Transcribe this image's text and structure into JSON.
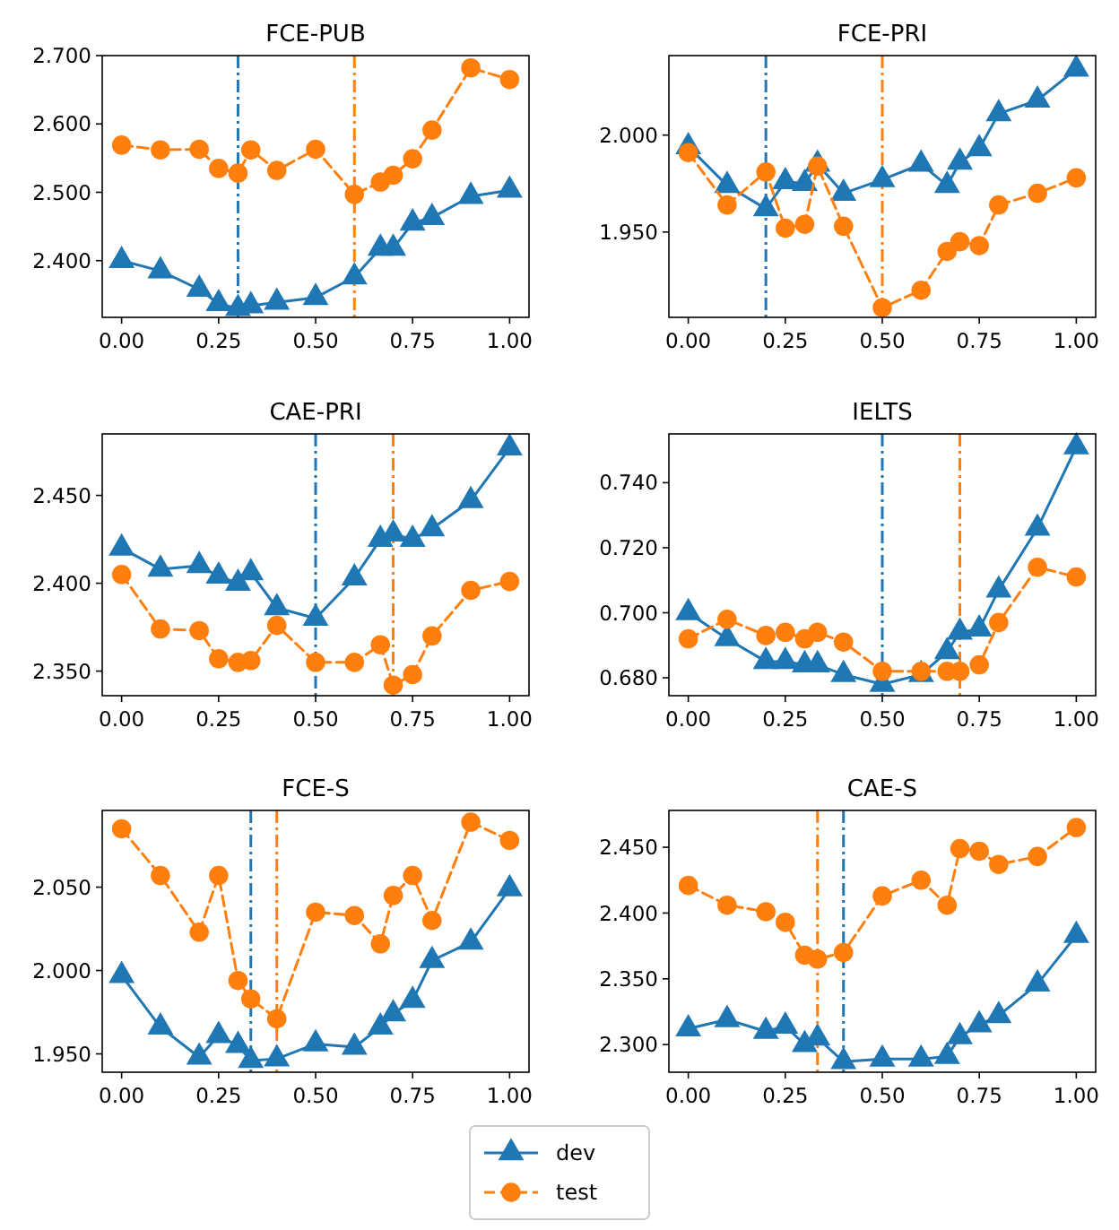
{
  "chart_data": [
    {
      "type": "line",
      "title": "FCE-PUB",
      "legend": "bottom",
      "x": [
        0,
        0.1,
        0.2,
        0.25,
        0.3,
        0.333,
        0.4,
        0.5,
        0.6,
        0.667,
        0.7,
        0.75,
        0.8,
        0.9,
        1.0
      ],
      "xlim": [
        -0.05,
        1.05
      ],
      "xticks": [
        {
          "value": 0,
          "label": "0.00"
        },
        {
          "value": 0.25,
          "label": "0.25"
        },
        {
          "value": 0.5,
          "label": "0.50"
        },
        {
          "value": 0.75,
          "label": "0.75"
        },
        {
          "value": 1,
          "label": "1.00"
        }
      ],
      "ylim": [
        2.317,
        2.7
      ],
      "yticks": [
        {
          "value": 2.4,
          "label": "2.400"
        },
        {
          "value": 2.5,
          "label": "2.500"
        },
        {
          "value": 2.6,
          "label": "2.600"
        },
        {
          "value": 2.7,
          "label": "2.700"
        }
      ],
      "series": [
        {
          "name": "dev",
          "color": "#1f77b4",
          "marker": "triangle",
          "line_style": "solid",
          "values": [
            2.4,
            2.385,
            2.358,
            2.337,
            2.33,
            2.334,
            2.339,
            2.346,
            2.376,
            2.418,
            2.418,
            2.455,
            2.463,
            2.494,
            2.503
          ]
        },
        {
          "name": "test",
          "color": "#ff7f0e",
          "marker": "circle",
          "line_style": "dashed",
          "values": [
            2.569,
            2.562,
            2.563,
            2.535,
            2.528,
            2.562,
            2.532,
            2.563,
            2.497,
            2.515,
            2.525,
            2.549,
            2.591,
            2.682,
            2.665
          ]
        }
      ],
      "ref_lines": [
        {
          "axis": "x",
          "value": 0.3,
          "color": "#1f77b4",
          "line_style": "dashdot"
        },
        {
          "axis": "x",
          "value": 0.6,
          "color": "#ff7f0e",
          "line_style": "dashdot"
        }
      ]
    },
    {
      "type": "line",
      "title": "FCE-PRI",
      "x": [
        0,
        0.1,
        0.2,
        0.25,
        0.3,
        0.333,
        0.4,
        0.5,
        0.6,
        0.667,
        0.7,
        0.75,
        0.8,
        0.9,
        1.0
      ],
      "xlim": [
        -0.05,
        1.05
      ],
      "xticks": [
        {
          "value": 0,
          "label": "0.00"
        },
        {
          "value": 0.25,
          "label": "0.25"
        },
        {
          "value": 0.5,
          "label": "0.50"
        },
        {
          "value": 0.75,
          "label": "0.75"
        },
        {
          "value": 1,
          "label": "1.00"
        }
      ],
      "ylim": [
        1.906,
        2.041
      ],
      "yticks": [
        {
          "value": 1.95,
          "label": "1.950"
        },
        {
          "value": 2.0,
          "label": "2.000"
        }
      ],
      "series": [
        {
          "color": "#1f77b4",
          "marker": "triangle",
          "line_style": "solid",
          "values": [
            1.994,
            1.974,
            1.962,
            1.976,
            1.975,
            1.985,
            1.97,
            1.977,
            1.985,
            1.974,
            1.986,
            1.993,
            2.011,
            2.018,
            2.034
          ]
        },
        {
          "color": "#ff7f0e",
          "marker": "circle",
          "line_style": "dashed",
          "values": [
            1.991,
            1.964,
            1.981,
            1.952,
            1.954,
            1.984,
            1.953,
            1.911,
            1.92,
            1.94,
            1.945,
            1.943,
            1.964,
            1.97,
            1.978
          ]
        }
      ],
      "ref_lines": [
        {
          "axis": "x",
          "value": 0.2,
          "color": "#1f77b4",
          "line_style": "dashdot"
        },
        {
          "axis": "x",
          "value": 0.5,
          "color": "#ff7f0e",
          "line_style": "dashdot"
        }
      ]
    },
    {
      "type": "line",
      "title": "CAE-PRI",
      "x": [
        0,
        0.1,
        0.2,
        0.25,
        0.3,
        0.333,
        0.4,
        0.5,
        0.6,
        0.667,
        0.7,
        0.75,
        0.8,
        0.9,
        1.0
      ],
      "xlim": [
        -0.05,
        1.05
      ],
      "xticks": [
        {
          "value": 0,
          "label": "0.00"
        },
        {
          "value": 0.25,
          "label": "0.25"
        },
        {
          "value": 0.5,
          "label": "0.50"
        },
        {
          "value": 0.75,
          "label": "0.75"
        },
        {
          "value": 1,
          "label": "1.00"
        }
      ],
      "ylim": [
        2.336,
        2.485
      ],
      "yticks": [
        {
          "value": 2.35,
          "label": "2.350"
        },
        {
          "value": 2.4,
          "label": "2.400"
        },
        {
          "value": 2.45,
          "label": "2.450"
        }
      ],
      "series": [
        {
          "color": "#1f77b4",
          "marker": "triangle",
          "line_style": "solid",
          "values": [
            2.42,
            2.408,
            2.41,
            2.404,
            2.4,
            2.406,
            2.386,
            2.38,
            2.403,
            2.425,
            2.428,
            2.425,
            2.431,
            2.447,
            2.477
          ]
        },
        {
          "color": "#ff7f0e",
          "marker": "circle",
          "line_style": "dashed",
          "values": [
            2.405,
            2.374,
            2.373,
            2.357,
            2.355,
            2.356,
            2.376,
            2.355,
            2.355,
            2.365,
            2.342,
            2.348,
            2.37,
            2.396,
            2.401
          ]
        }
      ],
      "ref_lines": [
        {
          "axis": "x",
          "value": 0.5,
          "color": "#1f77b4",
          "line_style": "dashdot"
        },
        {
          "axis": "x",
          "value": 0.7,
          "color": "#ff7f0e",
          "line_style": "dashdot"
        }
      ]
    },
    {
      "type": "line",
      "title": "IELTS",
      "x": [
        0,
        0.1,
        0.2,
        0.25,
        0.3,
        0.333,
        0.4,
        0.5,
        0.6,
        0.667,
        0.7,
        0.75,
        0.8,
        0.9,
        1.0
      ],
      "xlim": [
        -0.05,
        1.05
      ],
      "xticks": [
        {
          "value": 0,
          "label": "0.00"
        },
        {
          "value": 0.25,
          "label": "0.25"
        },
        {
          "value": 0.5,
          "label": "0.50"
        },
        {
          "value": 0.75,
          "label": "0.75"
        },
        {
          "value": 1,
          "label": "1.00"
        }
      ],
      "ylim": [
        0.6745,
        0.755
      ],
      "yticks": [
        {
          "value": 0.68,
          "label": "0.680"
        },
        {
          "value": 0.7,
          "label": "0.700"
        },
        {
          "value": 0.72,
          "label": "0.720"
        },
        {
          "value": 0.74,
          "label": "0.740"
        }
      ],
      "series": [
        {
          "color": "#1f77b4",
          "marker": "triangle",
          "line_style": "solid",
          "values": [
            0.7,
            0.692,
            0.685,
            0.685,
            0.684,
            0.684,
            0.681,
            0.678,
            0.681,
            0.688,
            0.694,
            0.695,
            0.707,
            0.726,
            0.751
          ]
        },
        {
          "color": "#ff7f0e",
          "marker": "circle",
          "line_style": "dashed",
          "values": [
            0.692,
            0.698,
            0.693,
            0.694,
            0.692,
            0.694,
            0.691,
            0.682,
            0.682,
            0.682,
            0.682,
            0.684,
            0.697,
            0.714,
            0.711
          ]
        }
      ],
      "ref_lines": [
        {
          "axis": "x",
          "value": 0.5,
          "color": "#1f77b4",
          "line_style": "dashdot"
        },
        {
          "axis": "x",
          "value": 0.7,
          "color": "#ff7f0e",
          "line_style": "dashdot"
        }
      ]
    },
    {
      "type": "line",
      "title": "FCE-S",
      "x": [
        0,
        0.1,
        0.2,
        0.25,
        0.3,
        0.333,
        0.4,
        0.5,
        0.6,
        0.667,
        0.7,
        0.75,
        0.8,
        0.9,
        1.0
      ],
      "xlim": [
        -0.05,
        1.05
      ],
      "xticks": [
        {
          "value": 0,
          "label": "0.00"
        },
        {
          "value": 0.25,
          "label": "0.25"
        },
        {
          "value": 0.5,
          "label": "0.50"
        },
        {
          "value": 0.75,
          "label": "0.75"
        },
        {
          "value": 1,
          "label": "1.00"
        }
      ],
      "ylim": [
        1.939,
        2.096
      ],
      "yticks": [
        {
          "value": 1.95,
          "label": "1.950"
        },
        {
          "value": 2.0,
          "label": "2.000"
        },
        {
          "value": 2.05,
          "label": "2.050"
        }
      ],
      "series": [
        {
          "color": "#1f77b4",
          "marker": "triangle",
          "line_style": "solid",
          "values": [
            1.997,
            1.966,
            1.948,
            1.961,
            1.955,
            1.946,
            1.947,
            1.956,
            1.954,
            1.966,
            1.974,
            1.982,
            2.006,
            2.017,
            2.049
          ]
        },
        {
          "color": "#ff7f0e",
          "marker": "circle",
          "line_style": "dashed",
          "values": [
            2.085,
            2.057,
            2.023,
            2.057,
            1.994,
            1.983,
            1.971,
            2.035,
            2.033,
            2.016,
            2.045,
            2.057,
            2.03,
            2.089,
            2.078
          ]
        }
      ],
      "ref_lines": [
        {
          "axis": "x",
          "value": 0.333,
          "color": "#1f77b4",
          "line_style": "dashdot"
        },
        {
          "axis": "x",
          "value": 0.4,
          "color": "#ff7f0e",
          "line_style": "dashdot"
        }
      ]
    },
    {
      "type": "line",
      "title": "CAE-S",
      "x": [
        0,
        0.1,
        0.2,
        0.25,
        0.3,
        0.333,
        0.4,
        0.5,
        0.6,
        0.667,
        0.7,
        0.75,
        0.8,
        0.9,
        1.0
      ],
      "xlim": [
        -0.05,
        1.05
      ],
      "xticks": [
        {
          "value": 0,
          "label": "0.00"
        },
        {
          "value": 0.25,
          "label": "0.25"
        },
        {
          "value": 0.5,
          "label": "0.50"
        },
        {
          "value": 0.75,
          "label": "0.75"
        },
        {
          "value": 1,
          "label": "1.00"
        }
      ],
      "ylim": [
        2.279,
        2.478
      ],
      "yticks": [
        {
          "value": 2.3,
          "label": "2.300"
        },
        {
          "value": 2.35,
          "label": "2.350"
        },
        {
          "value": 2.4,
          "label": "2.400"
        },
        {
          "value": 2.45,
          "label": "2.450"
        }
      ],
      "series": [
        {
          "color": "#1f77b4",
          "marker": "triangle",
          "line_style": "solid",
          "values": [
            2.312,
            2.319,
            2.31,
            2.314,
            2.3,
            2.305,
            2.287,
            2.289,
            2.289,
            2.291,
            2.306,
            2.315,
            2.322,
            2.346,
            2.383
          ]
        },
        {
          "color": "#ff7f0e",
          "marker": "circle",
          "line_style": "dashed",
          "values": [
            2.421,
            2.406,
            2.401,
            2.393,
            2.368,
            2.365,
            2.37,
            2.413,
            2.425,
            2.406,
            2.449,
            2.447,
            2.437,
            2.443,
            2.465
          ]
        }
      ],
      "ref_lines": [
        {
          "axis": "x",
          "value": 0.4,
          "color": "#1f77b4",
          "line_style": "dashdot"
        },
        {
          "axis": "x",
          "value": 0.333,
          "color": "#ff7f0e",
          "line_style": "dashdot"
        }
      ]
    }
  ]
}
